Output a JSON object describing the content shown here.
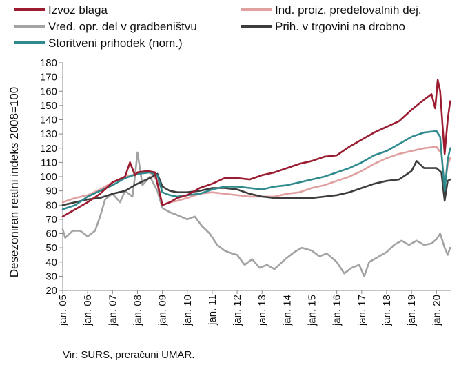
{
  "chart_data": {
    "type": "line",
    "ylabel": "Desezoniran realni indeks 2008=100",
    "ylim": [
      20,
      180
    ],
    "yticks": [
      20,
      30,
      40,
      50,
      60,
      70,
      80,
      90,
      100,
      110,
      120,
      130,
      140,
      150,
      160,
      170,
      180
    ],
    "xlim": [
      2005.0,
      2020.6
    ],
    "xticks": [
      {
        "label": "jan. 05",
        "x": 2005.0
      },
      {
        "label": "jan. 06",
        "x": 2006.0
      },
      {
        "label": "jan. 07",
        "x": 2007.0
      },
      {
        "label": "jan. 08",
        "x": 2008.0
      },
      {
        "label": "jan. 09",
        "x": 2009.0
      },
      {
        "label": "jan. 10",
        "x": 2010.0
      },
      {
        "label": "jan. 11",
        "x": 2011.0
      },
      {
        "label": "jan. 12",
        "x": 2012.0
      },
      {
        "label": "jan. 13",
        "x": 2013.0
      },
      {
        "label": "jan. 14",
        "x": 2014.0
      },
      {
        "label": "jan. 15",
        "x": 2015.0
      },
      {
        "label": "jan. 16",
        "x": 2016.0
      },
      {
        "label": "jan. 17",
        "x": 2017.0
      },
      {
        "label": "jan. 18",
        "x": 2018.0
      },
      {
        "label": "jan. 19",
        "x": 2019.0
      },
      {
        "label": "jan. 20",
        "x": 2020.0
      }
    ],
    "grid": false,
    "legend_position": "top",
    "source_note": "Vir: SURS, preračuni UMAR.",
    "series": [
      {
        "name": "Izvoz blaga",
        "color": "#9b1b30",
        "points": [
          [
            2005.0,
            72
          ],
          [
            2005.5,
            77
          ],
          [
            2006.0,
            82
          ],
          [
            2006.5,
            88
          ],
          [
            2007.0,
            96
          ],
          [
            2007.5,
            100
          ],
          [
            2007.7,
            110
          ],
          [
            2007.9,
            101
          ],
          [
            2008.0,
            103
          ],
          [
            2008.4,
            104
          ],
          [
            2008.7,
            103
          ],
          [
            2008.8,
            95
          ],
          [
            2009.0,
            80
          ],
          [
            2009.3,
            82
          ],
          [
            2009.6,
            85
          ],
          [
            2010.0,
            87
          ],
          [
            2010.5,
            92
          ],
          [
            2011.0,
            95
          ],
          [
            2011.5,
            99
          ],
          [
            2012.0,
            99
          ],
          [
            2012.5,
            98
          ],
          [
            2013.0,
            101
          ],
          [
            2013.5,
            103
          ],
          [
            2014.0,
            106
          ],
          [
            2014.5,
            109
          ],
          [
            2015.0,
            111
          ],
          [
            2015.5,
            114
          ],
          [
            2016.0,
            115
          ],
          [
            2016.5,
            121
          ],
          [
            2017.0,
            126
          ],
          [
            2017.5,
            131
          ],
          [
            2018.0,
            135
          ],
          [
            2018.5,
            139
          ],
          [
            2019.0,
            147
          ],
          [
            2019.5,
            154
          ],
          [
            2019.8,
            158
          ],
          [
            2019.95,
            148
          ],
          [
            2020.05,
            168
          ],
          [
            2020.15,
            160
          ],
          [
            2020.25,
            135
          ],
          [
            2020.33,
            116
          ],
          [
            2020.45,
            140
          ],
          [
            2020.55,
            153
          ]
        ]
      },
      {
        "name": "Ind. proiz. predelovalnih dej.",
        "color": "#e0a09f",
        "points": [
          [
            2005.0,
            82
          ],
          [
            2005.5,
            85
          ],
          [
            2006.0,
            87
          ],
          [
            2006.5,
            91
          ],
          [
            2007.0,
            96
          ],
          [
            2007.5,
            100
          ],
          [
            2008.0,
            102
          ],
          [
            2008.5,
            103
          ],
          [
            2008.8,
            97
          ],
          [
            2009.0,
            80
          ],
          [
            2009.3,
            82
          ],
          [
            2009.6,
            83
          ],
          [
            2010.0,
            85
          ],
          [
            2010.5,
            88
          ],
          [
            2011.0,
            89
          ],
          [
            2011.5,
            88
          ],
          [
            2012.0,
            87
          ],
          [
            2012.5,
            86
          ],
          [
            2013.0,
            86
          ],
          [
            2013.5,
            86
          ],
          [
            2014.0,
            88
          ],
          [
            2014.5,
            89
          ],
          [
            2015.0,
            92
          ],
          [
            2015.5,
            94
          ],
          [
            2016.0,
            97
          ],
          [
            2016.5,
            100
          ],
          [
            2017.0,
            104
          ],
          [
            2017.5,
            109
          ],
          [
            2018.0,
            113
          ],
          [
            2018.5,
            116
          ],
          [
            2019.0,
            118
          ],
          [
            2019.5,
            120
          ],
          [
            2020.0,
            121
          ],
          [
            2020.2,
            116
          ],
          [
            2020.33,
            93
          ],
          [
            2020.45,
            108
          ],
          [
            2020.55,
            113
          ]
        ]
      },
      {
        "name": "Vred. opr. del v gradbeništvu",
        "color": "#a3a3a3",
        "points": [
          [
            2005.0,
            63
          ],
          [
            2005.1,
            57
          ],
          [
            2005.4,
            62
          ],
          [
            2005.7,
            62
          ],
          [
            2006.0,
            58
          ],
          [
            2006.3,
            62
          ],
          [
            2006.5,
            72
          ],
          [
            2006.7,
            84
          ],
          [
            2007.0,
            88
          ],
          [
            2007.3,
            82
          ],
          [
            2007.5,
            90
          ],
          [
            2007.8,
            86
          ],
          [
            2007.9,
            100
          ],
          [
            2008.0,
            117
          ],
          [
            2008.2,
            94
          ],
          [
            2008.5,
            100
          ],
          [
            2008.8,
            90
          ],
          [
            2009.0,
            78
          ],
          [
            2009.3,
            75
          ],
          [
            2009.6,
            73
          ],
          [
            2010.0,
            70
          ],
          [
            2010.3,
            72
          ],
          [
            2010.6,
            65
          ],
          [
            2010.9,
            60
          ],
          [
            2011.2,
            52
          ],
          [
            2011.5,
            48
          ],
          [
            2011.8,
            46
          ],
          [
            2012.0,
            45
          ],
          [
            2012.3,
            38
          ],
          [
            2012.6,
            42
          ],
          [
            2012.9,
            36
          ],
          [
            2013.2,
            38
          ],
          [
            2013.5,
            35
          ],
          [
            2013.8,
            40
          ],
          [
            2014.0,
            43
          ],
          [
            2014.3,
            47
          ],
          [
            2014.6,
            50
          ],
          [
            2015.0,
            48
          ],
          [
            2015.3,
            44
          ],
          [
            2015.6,
            46
          ],
          [
            2016.0,
            40
          ],
          [
            2016.3,
            32
          ],
          [
            2016.6,
            36
          ],
          [
            2016.9,
            38
          ],
          [
            2017.1,
            30
          ],
          [
            2017.3,
            40
          ],
          [
            2017.6,
            43
          ],
          [
            2018.0,
            47
          ],
          [
            2018.3,
            52
          ],
          [
            2018.6,
            55
          ],
          [
            2018.9,
            52
          ],
          [
            2019.2,
            55
          ],
          [
            2019.5,
            52
          ],
          [
            2019.8,
            53
          ],
          [
            2020.0,
            56
          ],
          [
            2020.15,
            60
          ],
          [
            2020.33,
            50
          ],
          [
            2020.45,
            45
          ],
          [
            2020.55,
            50
          ]
        ]
      },
      {
        "name": "Prih. v trgovini na drobno",
        "color": "#3d3d3d",
        "points": [
          [
            2005.0,
            80
          ],
          [
            2005.5,
            82
          ],
          [
            2006.0,
            84
          ],
          [
            2006.5,
            85
          ],
          [
            2007.0,
            88
          ],
          [
            2007.5,
            90
          ],
          [
            2008.0,
            95
          ],
          [
            2008.5,
            99
          ],
          [
            2008.8,
            102
          ],
          [
            2009.0,
            93
          ],
          [
            2009.3,
            90
          ],
          [
            2009.6,
            89
          ],
          [
            2010.0,
            89
          ],
          [
            2010.5,
            90
          ],
          [
            2011.0,
            92
          ],
          [
            2011.5,
            92
          ],
          [
            2012.0,
            91
          ],
          [
            2012.5,
            88
          ],
          [
            2013.0,
            86
          ],
          [
            2013.5,
            85
          ],
          [
            2014.0,
            85
          ],
          [
            2014.5,
            85
          ],
          [
            2015.0,
            85
          ],
          [
            2015.5,
            86
          ],
          [
            2016.0,
            87
          ],
          [
            2016.5,
            89
          ],
          [
            2017.0,
            92
          ],
          [
            2017.5,
            95
          ],
          [
            2018.0,
            97
          ],
          [
            2018.5,
            98
          ],
          [
            2019.0,
            104
          ],
          [
            2019.2,
            111
          ],
          [
            2019.5,
            106
          ],
          [
            2020.0,
            106
          ],
          [
            2020.2,
            103
          ],
          [
            2020.33,
            83
          ],
          [
            2020.45,
            97
          ],
          [
            2020.55,
            98
          ]
        ]
      },
      {
        "name": "Storitveni prihodek (nom.)",
        "color": "#2f8a8e",
        "points": [
          [
            2005.0,
            77
          ],
          [
            2005.5,
            80
          ],
          [
            2006.0,
            86
          ],
          [
            2006.5,
            90
          ],
          [
            2007.0,
            94
          ],
          [
            2007.5,
            99
          ],
          [
            2008.0,
            102
          ],
          [
            2008.5,
            103
          ],
          [
            2008.8,
            101
          ],
          [
            2009.0,
            89
          ],
          [
            2009.3,
            87
          ],
          [
            2009.6,
            86
          ],
          [
            2010.0,
            87
          ],
          [
            2010.5,
            88
          ],
          [
            2011.0,
            91
          ],
          [
            2011.5,
            93
          ],
          [
            2012.0,
            93
          ],
          [
            2012.5,
            92
          ],
          [
            2013.0,
            91
          ],
          [
            2013.5,
            93
          ],
          [
            2014.0,
            94
          ],
          [
            2014.5,
            96
          ],
          [
            2015.0,
            98
          ],
          [
            2015.5,
            100
          ],
          [
            2016.0,
            103
          ],
          [
            2016.5,
            106
          ],
          [
            2017.0,
            110
          ],
          [
            2017.5,
            115
          ],
          [
            2018.0,
            118
          ],
          [
            2018.5,
            123
          ],
          [
            2019.0,
            128
          ],
          [
            2019.5,
            131
          ],
          [
            2020.0,
            132
          ],
          [
            2020.15,
            128
          ],
          [
            2020.33,
            90
          ],
          [
            2020.45,
            112
          ],
          [
            2020.55,
            120
          ]
        ]
      }
    ]
  }
}
